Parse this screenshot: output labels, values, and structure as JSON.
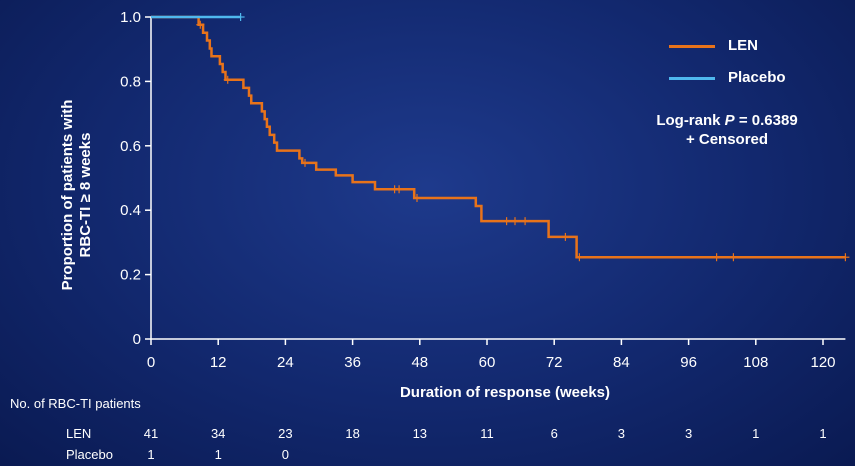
{
  "chart_data": {
    "type": "line",
    "xlabel": "Duration of response (weeks)",
    "ylabel_lines": [
      "Proportion of patients with",
      "RBC-TI ≥ 8 weeks"
    ],
    "xlim": [
      0,
      124
    ],
    "ylim": [
      0,
      1.0
    ],
    "x_ticks": [
      0,
      12,
      24,
      36,
      48,
      60,
      72,
      84,
      96,
      108,
      120
    ],
    "y_ticks": [
      {
        "value": 0,
        "label": "0"
      },
      {
        "value": 0.2,
        "label": "0.2"
      },
      {
        "value": 0.4,
        "label": "0.4"
      },
      {
        "value": 0.6,
        "label": "0.6"
      },
      {
        "value": 0.8,
        "label": "0.8"
      },
      {
        "value": 1.0,
        "label": "1.0"
      }
    ],
    "series": [
      {
        "name": "LEN",
        "color": "#e8731a",
        "steps": [
          [
            0,
            1.0
          ],
          [
            8.5,
            0.976
          ],
          [
            9.3,
            0.951
          ],
          [
            10,
            0.927
          ],
          [
            10.5,
            0.902
          ],
          [
            10.8,
            0.878
          ],
          [
            12.3,
            0.854
          ],
          [
            12.8,
            0.829
          ],
          [
            13.3,
            0.805
          ],
          [
            16.5,
            0.78
          ],
          [
            17.5,
            0.756
          ],
          [
            17.9,
            0.732
          ],
          [
            19.8,
            0.707
          ],
          [
            20.3,
            0.683
          ],
          [
            20.7,
            0.659
          ],
          [
            21.2,
            0.634
          ],
          [
            22,
            0.61
          ],
          [
            22.5,
            0.585
          ],
          [
            26.5,
            0.561
          ],
          [
            27,
            0.547
          ],
          [
            29.5,
            0.526
          ],
          [
            33,
            0.508
          ],
          [
            36,
            0.487
          ],
          [
            40,
            0.465
          ],
          [
            47,
            0.438
          ],
          [
            58,
            0.413
          ],
          [
            59,
            0.366
          ],
          [
            71,
            0.317
          ],
          [
            76,
            0.254
          ],
          [
            124,
            0.254
          ]
        ],
        "censored": [
          [
            8.8,
            0.976
          ],
          [
            13.7,
            0.805
          ],
          [
            27.5,
            0.547
          ],
          [
            43.5,
            0.465
          ],
          [
            44.3,
            0.465
          ],
          [
            47.5,
            0.438
          ],
          [
            63.5,
            0.366
          ],
          [
            65,
            0.366
          ],
          [
            66.8,
            0.366
          ],
          [
            74,
            0.317
          ],
          [
            76.5,
            0.254
          ],
          [
            101,
            0.254
          ],
          [
            104,
            0.254
          ],
          [
            124,
            0.254
          ]
        ]
      },
      {
        "name": "Placebo",
        "color": "#4fb8ee",
        "steps": [
          [
            0,
            1.0
          ],
          [
            16,
            1.0
          ]
        ],
        "censored": [
          [
            16,
            1.0
          ]
        ]
      }
    ],
    "annotations": {
      "logrank_prefix": "Log-rank ",
      "logrank_p": "P",
      "logrank_value": " = 0.6389",
      "censored_note": "+ Censored"
    },
    "legend_position": "top-right",
    "grid": false
  },
  "numbers_at_risk": {
    "title": "No. of RBC-TI patients",
    "rows": [
      {
        "label": "LEN",
        "values": [
          "41",
          "34",
          "23",
          "18",
          "13",
          "11",
          "6",
          "3",
          "3",
          "1",
          "1"
        ]
      },
      {
        "label": "Placebo",
        "values": [
          "1",
          "1",
          "0"
        ]
      }
    ]
  }
}
